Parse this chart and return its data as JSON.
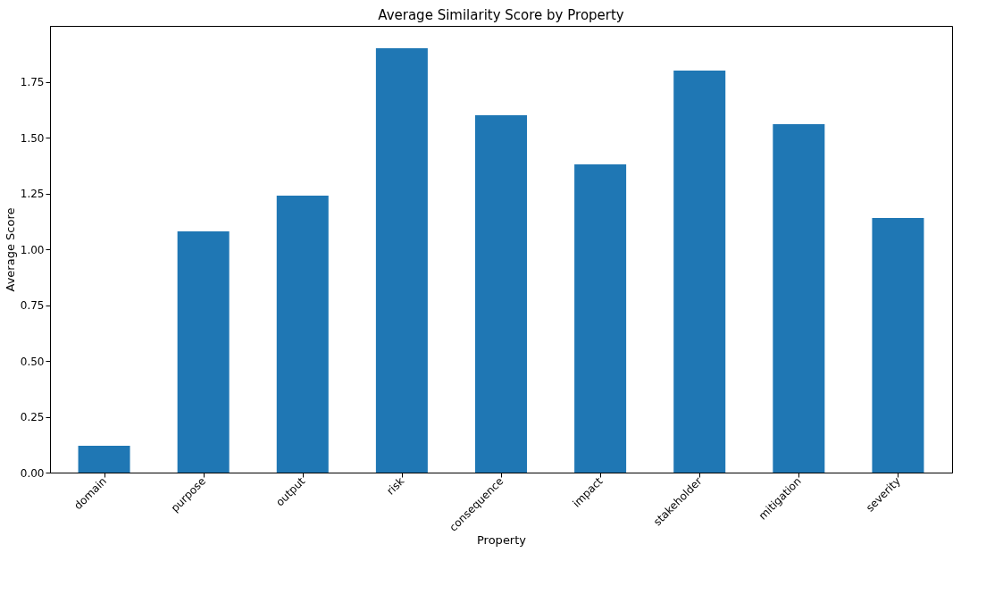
{
  "chart_data": {
    "type": "bar",
    "title": "Average Similarity Score by Property",
    "xlabel": "Property",
    "ylabel": "Average Score",
    "categories": [
      "domain",
      "purpose",
      "output",
      "risk",
      "consequence",
      "impact",
      "stakeholder",
      "mitigation",
      "severity"
    ],
    "values": [
      0.12,
      1.08,
      1.24,
      1.9,
      1.6,
      1.38,
      1.8,
      1.56,
      1.14
    ],
    "color": "#1f77b4",
    "ylim": [
      0,
      2.0
    ],
    "yticks": [
      {
        "value": 0,
        "label": "0.00"
      },
      {
        "value": 0.25,
        "label": "0.25"
      },
      {
        "value": 0.5,
        "label": "0.50"
      },
      {
        "value": 0.75,
        "label": "0.75"
      },
      {
        "value": 1,
        "label": "1.00"
      },
      {
        "value": 1.25,
        "label": "1.25"
      },
      {
        "value": 1.5,
        "label": "1.50"
      },
      {
        "value": 1.75,
        "label": "1.75"
      }
    ],
    "grid": false
  }
}
